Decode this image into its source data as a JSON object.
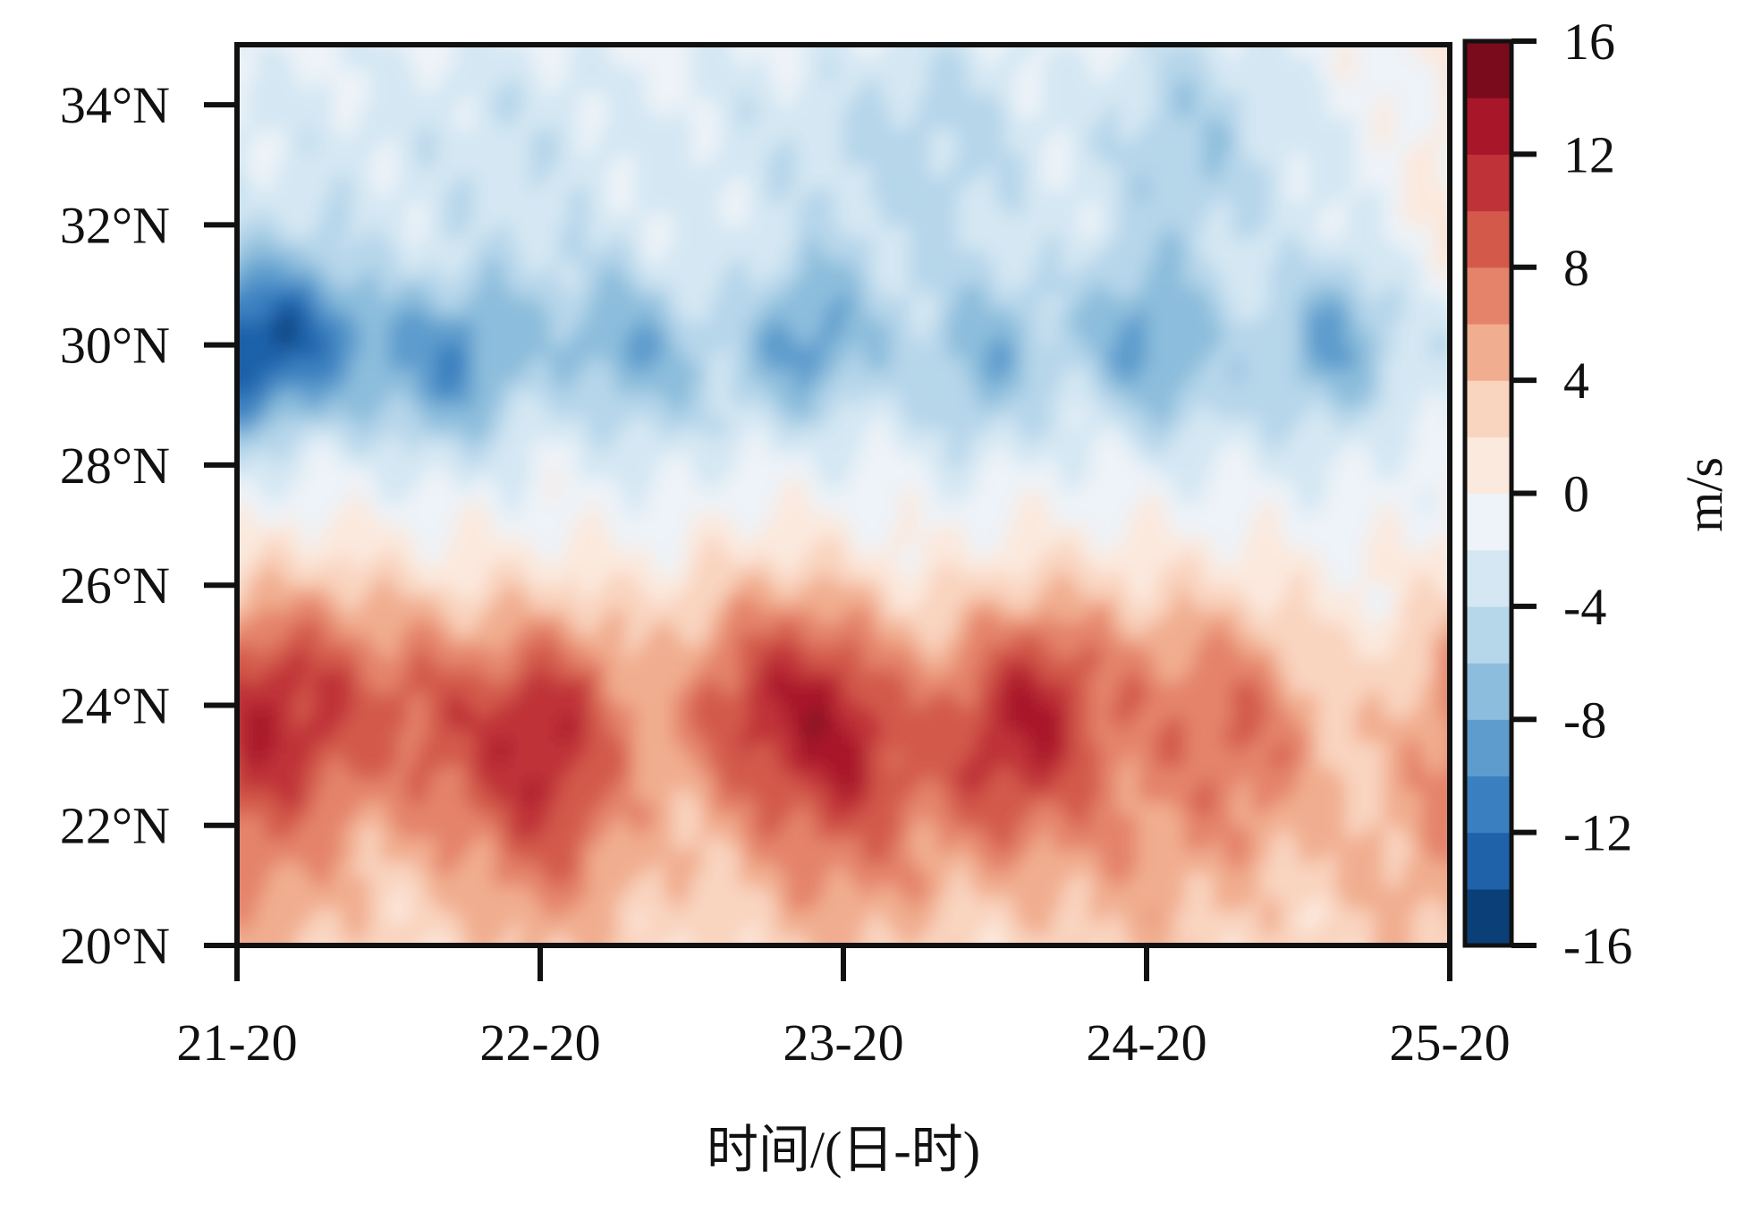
{
  "chart_data": {
    "type": "heatmap",
    "title": "",
    "xlabel": "时间/(日-时)",
    "ylabel": "",
    "x_ticks": [
      "21-20",
      "22-20",
      "23-20",
      "24-20",
      "25-20"
    ],
    "x_range_hours": [
      0,
      96
    ],
    "y_ticks": [
      "20°N",
      "22°N",
      "24°N",
      "26°N",
      "28°N",
      "30°N",
      "32°N",
      "34°N"
    ],
    "y_range": [
      20,
      35
    ],
    "colorbar": {
      "label": "m/s",
      "range": [
        -16,
        16
      ],
      "step": 2,
      "tick_values": [
        16,
        12,
        8,
        4,
        0,
        -4,
        -8,
        -12,
        -16
      ],
      "tick_labels": [
        "16",
        "12",
        "8",
        "4",
        "0",
        "-4",
        "-8",
        "-12",
        "-16"
      ],
      "colors": [
        "#0b3f78",
        "#1f62aa",
        "#3a80c0",
        "#5d9ccd",
        "#8cbddc",
        "#b6d6ea",
        "#d4e7f3",
        "#edf3f8",
        "#fbe9de",
        "#f9d4bf",
        "#f1ad8f",
        "#e4836a",
        "#d35a4b",
        "#bf3237",
        "#a81729",
        "#7a0b1d"
      ]
    },
    "grid": false,
    "description_of_field": [
      {
        "name": "negative band",
        "lat_center": 30,
        "peak_value": -14,
        "strongest_near": "21-20 to 22-08"
      },
      {
        "name": "positive band",
        "lat_center": 23.8,
        "peak_value": 14,
        "strongest_near": "23-20"
      }
    ]
  }
}
